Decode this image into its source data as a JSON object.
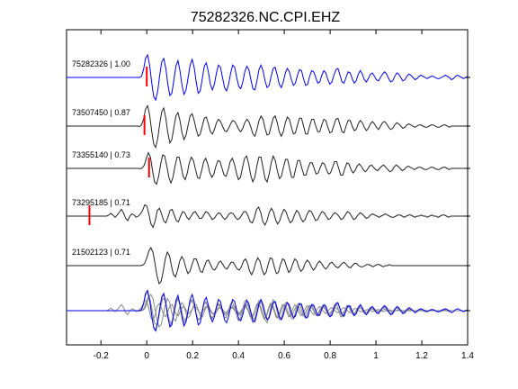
{
  "chart_data": {
    "type": "line",
    "title": "75282326.NC.CPI.EHZ",
    "xlabel": "",
    "ylabel": "",
    "xlim": [
      -0.35,
      1.4
    ],
    "x_ticks": [
      "-0.2",
      "0",
      "0.2",
      "0.4",
      "0.6",
      "0.8",
      "1",
      "1.2",
      "1.4"
    ],
    "x_tick_values": [
      -0.2,
      0,
      0.2,
      0.4,
      0.6,
      0.8,
      1.0,
      1.2,
      1.4
    ],
    "grid": false,
    "legend": "none",
    "colors": {
      "reference": "#0000ff",
      "trace": "#222222",
      "overlay": "#888888",
      "pick": "#ff0000"
    },
    "series": [
      {
        "label": "75282326 | 1.00",
        "pick_time": 0.0,
        "color": "#0000ff",
        "y": [
          0,
          0,
          0,
          0,
          0,
          0,
          0,
          0,
          0,
          0,
          0,
          0,
          0,
          0,
          0,
          0,
          0,
          0,
          0,
          0,
          0,
          0,
          0,
          0,
          0,
          0,
          0,
          0,
          0,
          0,
          0,
          0,
          0,
          0,
          0,
          0,
          0,
          0.05,
          0.35,
          0.85,
          1.0,
          0.55,
          -0.2,
          -0.85,
          -1.0,
          -0.6,
          0.1,
          0.7,
          0.85,
          0.4,
          -0.3,
          -0.8,
          -0.7,
          -0.1,
          0.5,
          0.75,
          0.3,
          -0.35,
          -0.75,
          -0.55,
          0.0,
          0.55,
          0.8,
          0.45,
          -0.2,
          -0.7,
          -0.6,
          -0.05,
          0.5,
          0.65,
          0.25,
          -0.3,
          -0.55,
          -0.3,
          0.2,
          0.55,
          0.45,
          0.0,
          -0.45,
          -0.6,
          -0.3,
          0.2,
          0.55,
          0.45,
          0.0,
          -0.4,
          -0.5,
          -0.2,
          0.25,
          0.5,
          0.35,
          -0.1,
          -0.5,
          -0.55,
          -0.15,
          0.35,
          0.55,
          0.3,
          -0.15,
          -0.45,
          -0.35,
          0.05,
          0.4,
          0.45,
          0.1,
          -0.3,
          -0.45,
          -0.2,
          0.2,
          0.4,
          0.25,
          -0.1,
          -0.35,
          -0.25,
          0.1,
          0.35,
          0.3,
          -0.05,
          -0.35,
          -0.3,
          0.05,
          0.3,
          0.25,
          0.0,
          -0.25,
          -0.2,
          0.1,
          0.3,
          0.2,
          -0.1,
          -0.3,
          -0.2,
          0.1,
          0.35,
          0.4,
          0.1,
          -0.2,
          -0.25,
          0.0,
          0.25,
          0.2,
          -0.05,
          -0.25,
          -0.15,
          0.15,
          0.3,
          0.15,
          -0.1,
          -0.2,
          -0.05,
          0.15,
          0.2,
          0.05,
          -0.1,
          -0.15,
          0.0,
          0.15,
          0.25,
          0.15,
          -0.05,
          -0.2,
          -0.15,
          0.05,
          0.2,
          0.15,
          0.0,
          -0.15,
          -0.1,
          0.05,
          0.15,
          0.1,
          0.0,
          -0.1,
          -0.05,
          0.05,
          0.1,
          0.05,
          0.0,
          -0.05,
          0.0,
          0.05,
          0.05,
          0.0,
          -0.05,
          -0.05,
          0.0,
          0.05,
          0.1,
          0.05,
          0.0,
          -0.1,
          -0.05,
          0.05,
          0.1,
          0.05,
          0.0,
          -0.05,
          0.0,
          0.05
        ]
      },
      {
        "label": "73507450 | 0.87",
        "pick_time": -0.01,
        "color": "#222222",
        "y": [
          0,
          0,
          0,
          0,
          0,
          0,
          0,
          0,
          0,
          0,
          0,
          0,
          0,
          0,
          0,
          0,
          0,
          0,
          0,
          0,
          0,
          0,
          0,
          0,
          0,
          0,
          0,
          0,
          0,
          0,
          0,
          0,
          0,
          0,
          0,
          0,
          -0.02,
          0.05,
          0.3,
          0.75,
          0.9,
          0.5,
          -0.2,
          -0.8,
          -0.95,
          -0.55,
          0.1,
          0.65,
          0.8,
          0.35,
          -0.3,
          -0.75,
          -0.6,
          -0.05,
          0.45,
          0.6,
          0.25,
          -0.3,
          -0.6,
          -0.4,
          0.05,
          0.45,
          0.55,
          0.25,
          -0.15,
          -0.45,
          -0.35,
          0.0,
          0.35,
          0.4,
          0.1,
          -0.25,
          -0.35,
          -0.15,
          0.15,
          0.3,
          0.2,
          0.0,
          -0.2,
          -0.25,
          -0.1,
          0.1,
          0.25,
          0.2,
          0.05,
          -0.15,
          -0.25,
          -0.1,
          0.15,
          0.3,
          0.2,
          -0.05,
          -0.35,
          -0.45,
          -0.15,
          0.25,
          0.45,
          0.3,
          -0.1,
          -0.4,
          -0.35,
          0.0,
          0.35,
          0.45,
          0.15,
          -0.25,
          -0.45,
          -0.25,
          0.15,
          0.4,
          0.3,
          -0.05,
          -0.35,
          -0.3,
          0.05,
          0.35,
          0.35,
          0.0,
          -0.35,
          -0.35,
          0.0,
          0.3,
          0.3,
          0.0,
          -0.25,
          -0.25,
          0.05,
          0.3,
          0.25,
          -0.05,
          -0.3,
          -0.25,
          0.05,
          0.3,
          0.35,
          0.05,
          -0.25,
          -0.3,
          0.0,
          0.25,
          0.25,
          0.0,
          -0.2,
          -0.15,
          0.1,
          0.25,
          0.15,
          -0.05,
          -0.2,
          -0.1,
          0.1,
          0.2,
          0.1,
          -0.05,
          -0.15,
          0.0,
          0.15,
          0.2,
          0.1,
          -0.05,
          -0.15,
          -0.1,
          0.05,
          0.15,
          0.1,
          0.0,
          -0.1,
          -0.05,
          0.05,
          0.1,
          0.05,
          0.0,
          -0.05,
          0.0,
          0.05,
          0.05,
          0.0,
          -0.05,
          -0.05,
          0.0,
          0.05,
          0.05,
          0.0,
          -0.05,
          -0.05,
          0.0,
          0.05,
          0.05,
          0.0,
          -0.05,
          0.0,
          0.0,
          0.0,
          0.0,
          0.0,
          0.0,
          0.0,
          0.0,
          0.0
        ]
      },
      {
        "label": "73355140 | 0.73",
        "pick_time": 0.01,
        "color": "#222222",
        "y": [
          0,
          0,
          0,
          0,
          0,
          0,
          0,
          0,
          0,
          0,
          0,
          0,
          0,
          0,
          0,
          0,
          0,
          0,
          0,
          0,
          0,
          0,
          0,
          0,
          0,
          0,
          0,
          0,
          0,
          0,
          0,
          0,
          0,
          0,
          0,
          0,
          -0.02,
          0.02,
          0.15,
          0.45,
          0.7,
          0.5,
          -0.1,
          -0.6,
          -0.7,
          -0.35,
          0.2,
          0.6,
          0.55,
          0.1,
          -0.4,
          -0.65,
          -0.4,
          0.1,
          0.5,
          0.5,
          0.1,
          -0.35,
          -0.5,
          -0.2,
          0.25,
          0.5,
          0.35,
          -0.05,
          -0.4,
          -0.45,
          -0.1,
          0.3,
          0.45,
          0.2,
          -0.2,
          -0.4,
          -0.25,
          0.1,
          0.35,
          0.3,
          0.0,
          -0.3,
          -0.35,
          -0.05,
          0.3,
          0.45,
          0.2,
          -0.2,
          -0.5,
          -0.4,
          0.05,
          0.45,
          0.55,
          0.2,
          -0.3,
          -0.6,
          -0.4,
          0.1,
          0.5,
          0.5,
          0.05,
          -0.45,
          -0.6,
          -0.25,
          0.25,
          0.55,
          0.35,
          -0.1,
          -0.45,
          -0.35,
          0.05,
          0.4,
          0.4,
          0.0,
          -0.4,
          -0.4,
          0.0,
          0.35,
          0.35,
          0.0,
          -0.3,
          -0.3,
          0.0,
          0.25,
          0.25,
          0.0,
          -0.25,
          -0.2,
          0.05,
          0.25,
          0.2,
          -0.05,
          -0.25,
          -0.2,
          0.05,
          0.3,
          0.3,
          0.0,
          -0.3,
          -0.3,
          0.0,
          0.25,
          0.2,
          -0.05,
          -0.2,
          -0.1,
          0.1,
          0.2,
          0.1,
          -0.05,
          -0.15,
          -0.05,
          0.1,
          0.15,
          0.05,
          -0.05,
          -0.1,
          0.0,
          0.1,
          0.15,
          0.05,
          -0.05,
          -0.15,
          -0.1,
          0.05,
          0.15,
          0.1,
          0.0,
          -0.1,
          -0.05,
          0.05,
          0.1,
          0.05,
          0.0,
          -0.05,
          0.0,
          0.05,
          0.05,
          0.0,
          -0.05,
          -0.05,
          0.0,
          0.05,
          0.05,
          0.0,
          -0.05,
          -0.05,
          0.0,
          0.05,
          0.05,
          0.0,
          -0.05,
          0.0,
          0.0,
          0.0,
          0.0,
          0.0,
          0.0,
          0.0,
          0.0,
          0.0
        ]
      },
      {
        "label": "73295185 | 0.71",
        "pick_time": -0.25,
        "color": "#222222",
        "y": [
          0,
          0,
          0,
          0,
          0,
          0,
          0,
          0,
          0,
          0,
          0,
          0,
          0,
          0,
          0,
          0,
          0,
          0,
          0,
          0,
          0.05,
          0.12,
          0.05,
          -0.05,
          0.05,
          0.18,
          0.3,
          0.15,
          -0.1,
          -0.2,
          0.0,
          0.1,
          0.05,
          -0.05,
          0.0,
          0.1,
          0.25,
          0.5,
          0.45,
          0.1,
          -0.35,
          -0.5,
          -0.2,
          0.25,
          0.35,
          0.1,
          -0.2,
          -0.3,
          -0.05,
          0.25,
          0.3,
          0.05,
          -0.2,
          -0.25,
          0.0,
          0.2,
          0.15,
          -0.05,
          -0.15,
          0.0,
          0.15,
          0.2,
          0.05,
          -0.1,
          -0.1,
          0.05,
          0.2,
          0.15,
          0.0,
          -0.15,
          -0.1,
          0.05,
          0.15,
          0.1,
          -0.05,
          -0.15,
          -0.05,
          0.1,
          0.15,
          0.1,
          -0.05,
          -0.15,
          -0.1,
          0.05,
          0.2,
          0.2,
          0.0,
          -0.25,
          -0.3,
          -0.05,
          0.3,
          0.4,
          0.15,
          -0.25,
          -0.4,
          -0.2,
          0.15,
          0.35,
          0.2,
          -0.15,
          -0.35,
          -0.2,
          0.1,
          0.3,
          0.2,
          -0.1,
          -0.3,
          -0.2,
          0.05,
          0.25,
          0.15,
          -0.1,
          -0.25,
          -0.15,
          0.1,
          0.25,
          0.2,
          0.0,
          -0.2,
          -0.15,
          0.05,
          0.2,
          0.15,
          0.0,
          -0.15,
          -0.1,
          0.05,
          0.15,
          0.1,
          0.0,
          -0.15,
          -0.1,
          0.05,
          0.2,
          0.15,
          0.0,
          -0.15,
          -0.1,
          0.05,
          0.15,
          0.1,
          0.0,
          -0.1,
          -0.05,
          0.05,
          0.1,
          0.05,
          0.0,
          -0.05,
          0.0,
          0.05,
          0.1,
          0.05,
          0.0,
          -0.05,
          -0.05,
          0.0,
          0.05,
          0.05,
          0.0,
          -0.05,
          0.0,
          0.05,
          0.05,
          0.0,
          -0.05,
          0.0,
          0.0,
          0.05,
          0.0,
          0.0,
          -0.05,
          0.0,
          0.05,
          0.0,
          0.0,
          -0.05,
          0.0,
          0.05,
          0.05,
          0.0,
          -0.05,
          0.0,
          0.0,
          0.0,
          0.0,
          0.0,
          0.0,
          0.0,
          0.0,
          0.0
        ]
      },
      {
        "label": "21502123 | 0.71",
        "pick_time": null,
        "color": "#222222",
        "y": [
          0,
          0,
          0,
          0,
          0,
          0,
          0,
          0,
          0,
          0,
          0,
          0,
          0,
          0,
          0,
          0,
          0,
          0,
          0,
          0,
          0,
          0,
          0,
          0,
          0,
          0,
          0,
          0,
          0,
          0,
          0,
          0,
          0,
          0,
          0,
          0,
          0,
          0.02,
          0.1,
          0.35,
          0.65,
          0.8,
          0.6,
          0.1,
          -0.45,
          -0.8,
          -0.7,
          -0.25,
          0.3,
          0.6,
          0.45,
          0.0,
          -0.4,
          -0.5,
          -0.2,
          0.2,
          0.4,
          0.25,
          -0.1,
          -0.35,
          -0.25,
          0.05,
          0.3,
          0.3,
          0.05,
          -0.25,
          -0.3,
          -0.05,
          0.2,
          0.25,
          0.05,
          -0.15,
          -0.2,
          -0.05,
          0.15,
          0.2,
          0.05,
          -0.1,
          -0.15,
          0.0,
          0.15,
          0.15,
          0.0,
          -0.15,
          -0.2,
          -0.05,
          0.2,
          0.3,
          0.1,
          -0.25,
          -0.4,
          -0.2,
          0.15,
          0.35,
          0.2,
          -0.15,
          -0.4,
          -0.3,
          0.05,
          0.35,
          0.3,
          -0.05,
          -0.35,
          -0.3,
          0.05,
          0.3,
          0.25,
          -0.05,
          -0.3,
          -0.2,
          0.1,
          0.3,
          0.2,
          -0.1,
          -0.25,
          -0.15,
          0.1,
          0.25,
          0.15,
          -0.05,
          -0.2,
          -0.1,
          0.1,
          0.2,
          0.1,
          -0.05,
          -0.15,
          -0.05,
          0.1,
          0.15,
          0.05,
          -0.05,
          -0.1,
          0.0,
          0.1,
          0.15,
          0.05,
          -0.05,
          -0.1,
          0.0,
          0.1,
          0.1,
          0.0,
          -0.05,
          -0.05,
          0.0,
          0.05,
          0.05,
          0.0,
          -0.05,
          0.0,
          0.05,
          0.05,
          0.0,
          -0.05,
          0.0,
          0.0,
          0.05,
          0.0,
          0.0,
          0.0,
          0.0,
          0.0,
          0.0,
          0.0,
          0.0,
          0.0,
          0.0,
          0.0,
          0.0,
          0.0,
          0.0,
          0.0,
          0.0,
          0.0,
          0.0,
          0.0,
          0.0,
          0.0,
          0.0,
          0.0,
          0.0,
          0.0,
          0.0,
          0.0,
          0.0,
          0.0,
          0.0,
          0.0,
          0.0,
          0.0,
          0.0,
          0.0,
          0.0,
          0.0,
          0.0
        ]
      }
    ]
  }
}
